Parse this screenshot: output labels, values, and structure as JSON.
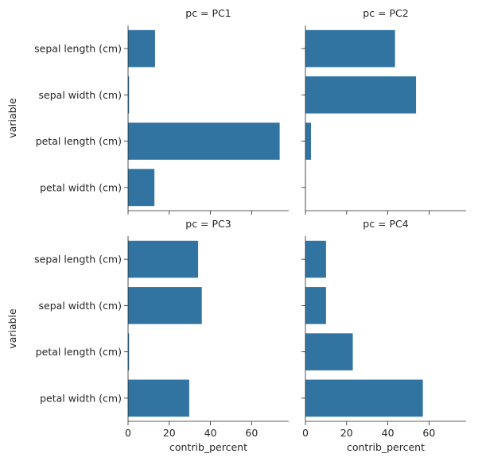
{
  "chart_data": {
    "type": "bar",
    "orientation": "horizontal",
    "categories": [
      "sepal length (cm)",
      "sepal width (cm)",
      "petal length (cm)",
      "petal width (cm)"
    ],
    "ylabel": "variable",
    "xlabel": "contrib_percent",
    "xlim": [
      0,
      78
    ],
    "xticks": [
      0,
      20,
      40,
      60
    ],
    "xtick_labels": [
      "0",
      "20",
      "40",
      "60"
    ],
    "bar_color": "#3274a1",
    "panels": [
      {
        "title": "pc = PC1",
        "values": [
          13.1,
          0.5,
          73.6,
          12.8
        ]
      },
      {
        "title": "pc = PC2",
        "values": [
          43.5,
          53.7,
          2.7,
          0.1
        ]
      },
      {
        "title": "pc = PC3",
        "values": [
          34.0,
          35.8,
          0.5,
          29.7
        ]
      },
      {
        "title": "pc = PC4",
        "values": [
          10.0,
          10.0,
          23.0,
          57.0
        ]
      }
    ]
  }
}
